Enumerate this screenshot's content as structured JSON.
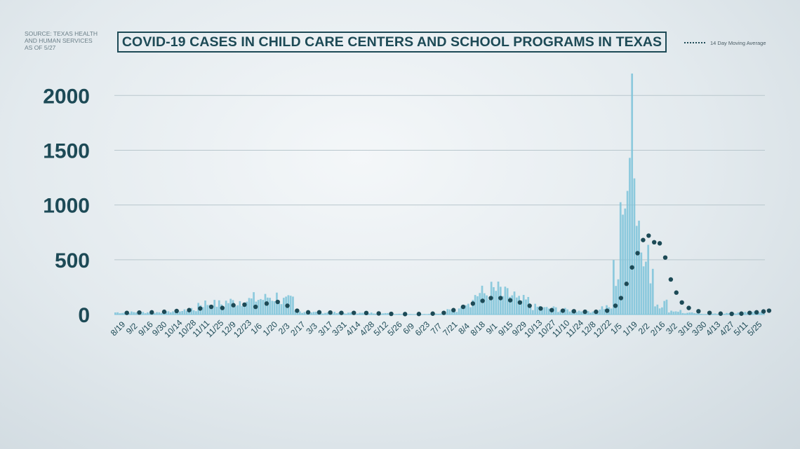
{
  "source_lines": [
    "SOURCE: TEXAS HEALTH",
    "AND HUMAN SERVICES",
    "AS OF 5/27"
  ],
  "chart_data": {
    "type": "bar",
    "title": "COVID-19 CASES IN CHILD CARE CENTERS AND SCHOOL PROGRAMS IN TEXAS",
    "legend": "14 Day Moving Average",
    "legend_position": "top-right",
    "grid": true,
    "ylim": [
      0,
      2200
    ],
    "yticks": [
      0,
      500,
      1000,
      1500,
      2000
    ],
    "xlabels": [
      "8/19",
      "9/2",
      "9/16",
      "9/30",
      "10/14",
      "10/28",
      "11/11",
      "11/25",
      "12/9",
      "12/23",
      "1/6",
      "1/20",
      "2/3",
      "2/17",
      "3/3",
      "3/17",
      "3/31",
      "4/14",
      "4/28",
      "5/12",
      "5/26",
      "6/9",
      "6/23",
      "7/7",
      "7/21",
      "8/4",
      "8/18",
      "9/1",
      "9/15",
      "9/29",
      "10/13",
      "10/27",
      "11/10",
      "11/24",
      "12/8",
      "12/22",
      "1/5",
      "1/19",
      "2/2",
      "2/16",
      "3/2",
      "3/16",
      "3/30",
      "4/13",
      "4/27",
      "5/11",
      "5/25"
    ],
    "daily_cases_weekly_peaks": [
      28,
      30,
      30,
      30,
      45,
      60,
      150,
      140,
      170,
      190,
      210,
      240,
      180,
      40,
      30,
      25,
      20,
      20,
      20,
      15,
      10,
      5,
      8,
      10,
      60,
      180,
      280,
      320,
      260,
      180,
      100,
      80,
      60,
      50,
      45,
      90,
      560,
      2200,
      680,
      150,
      50,
      20,
      10,
      10,
      15,
      25,
      40
    ],
    "moving_average_points": [
      {
        "x": 0.9,
        "y": 15
      },
      {
        "x": 1.8,
        "y": 18
      },
      {
        "x": 2.7,
        "y": 20
      },
      {
        "x": 3.6,
        "y": 25
      },
      {
        "x": 4.5,
        "y": 32
      },
      {
        "x": 5.4,
        "y": 40
      },
      {
        "x": 6.2,
        "y": 55
      },
      {
        "x": 7.0,
        "y": 70
      },
      {
        "x": 7.8,
        "y": 60
      },
      {
        "x": 8.6,
        "y": 85
      },
      {
        "x": 9.4,
        "y": 90
      },
      {
        "x": 10.2,
        "y": 70
      },
      {
        "x": 11.0,
        "y": 100
      },
      {
        "x": 11.8,
        "y": 115
      },
      {
        "x": 12.5,
        "y": 80
      },
      {
        "x": 13.2,
        "y": 35
      },
      {
        "x": 14.0,
        "y": 20
      },
      {
        "x": 14.8,
        "y": 20
      },
      {
        "x": 15.6,
        "y": 18
      },
      {
        "x": 16.4,
        "y": 15
      },
      {
        "x": 17.3,
        "y": 15
      },
      {
        "x": 18.2,
        "y": 14
      },
      {
        "x": 19.1,
        "y": 10
      },
      {
        "x": 20.0,
        "y": 6
      },
      {
        "x": 21.0,
        "y": 4
      },
      {
        "x": 22.0,
        "y": 5
      },
      {
        "x": 23.0,
        "y": 8
      },
      {
        "x": 23.8,
        "y": 15
      },
      {
        "x": 24.5,
        "y": 40
      },
      {
        "x": 25.2,
        "y": 70
      },
      {
        "x": 25.9,
        "y": 100
      },
      {
        "x": 26.6,
        "y": 125
      },
      {
        "x": 27.2,
        "y": 150
      },
      {
        "x": 27.9,
        "y": 150
      },
      {
        "x": 28.6,
        "y": 130
      },
      {
        "x": 29.3,
        "y": 110
      },
      {
        "x": 30.0,
        "y": 80
      },
      {
        "x": 30.8,
        "y": 55
      },
      {
        "x": 31.6,
        "y": 40
      },
      {
        "x": 32.4,
        "y": 35
      },
      {
        "x": 33.2,
        "y": 30
      },
      {
        "x": 34.0,
        "y": 25
      },
      {
        "x": 34.8,
        "y": 25
      },
      {
        "x": 35.6,
        "y": 35
      },
      {
        "x": 36.2,
        "y": 80
      },
      {
        "x": 36.6,
        "y": 150
      },
      {
        "x": 37.0,
        "y": 280
      },
      {
        "x": 37.4,
        "y": 430
      },
      {
        "x": 37.8,
        "y": 560
      },
      {
        "x": 38.2,
        "y": 680
      },
      {
        "x": 38.6,
        "y": 720
      },
      {
        "x": 39.0,
        "y": 660
      },
      {
        "x": 39.4,
        "y": 650
      },
      {
        "x": 39.8,
        "y": 520
      },
      {
        "x": 40.2,
        "y": 320
      },
      {
        "x": 40.6,
        "y": 200
      },
      {
        "x": 41.0,
        "y": 110
      },
      {
        "x": 41.5,
        "y": 60
      },
      {
        "x": 42.2,
        "y": 30
      },
      {
        "x": 43.0,
        "y": 15
      },
      {
        "x": 43.8,
        "y": 8
      },
      {
        "x": 44.6,
        "y": 6
      },
      {
        "x": 45.3,
        "y": 8
      },
      {
        "x": 45.9,
        "y": 15
      },
      {
        "x": 46.4,
        "y": 20
      },
      {
        "x": 46.9,
        "y": 28
      },
      {
        "x": 47.3,
        "y": 35
      }
    ]
  }
}
